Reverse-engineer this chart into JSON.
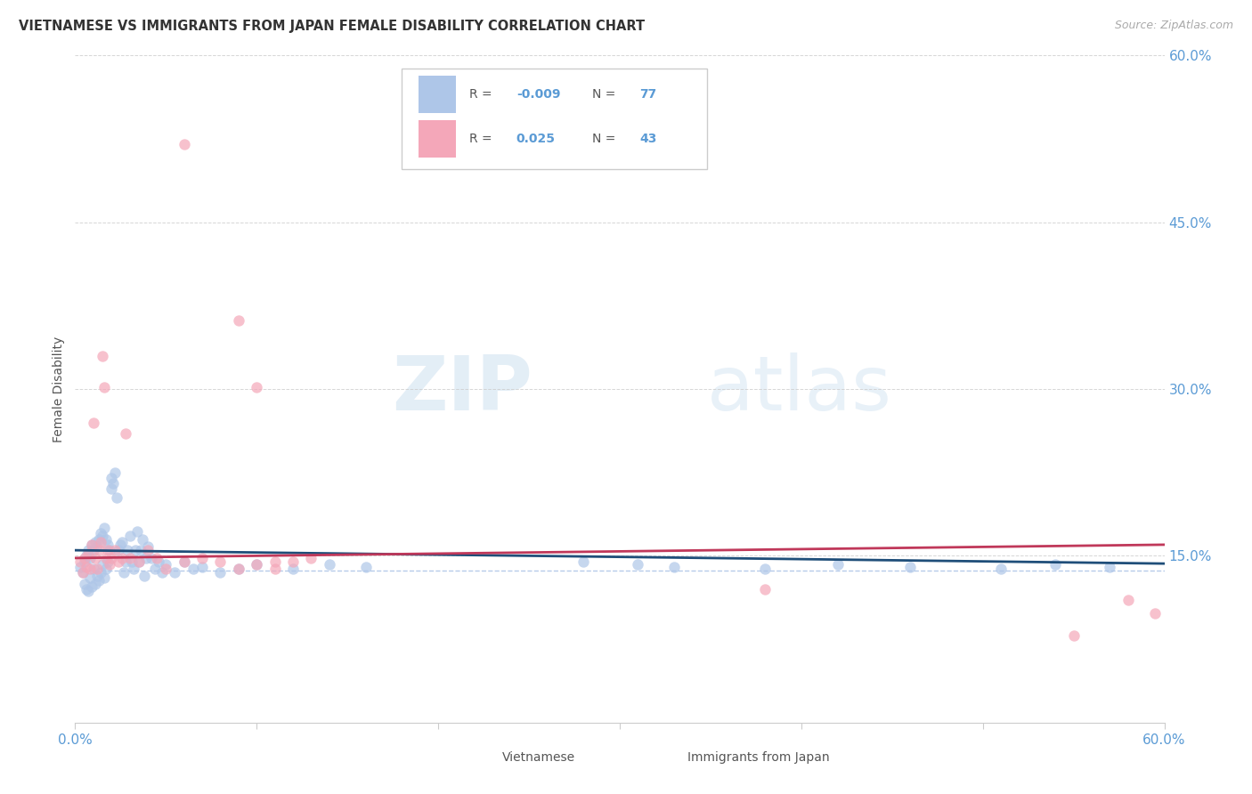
{
  "title": "VIETNAMESE VS IMMIGRANTS FROM JAPAN FEMALE DISABILITY CORRELATION CHART",
  "source": "Source: ZipAtlas.com",
  "ylabel": "Female Disability",
  "xlim": [
    0.0,
    0.6
  ],
  "ylim": [
    0.0,
    0.6
  ],
  "grid_color": "#cccccc",
  "watermark_zip": "ZIP",
  "watermark_atlas": "atlas",
  "scatter_blue_color": "#aec6e8",
  "scatter_pink_color": "#f4a7b9",
  "scatter_alpha": 0.7,
  "scatter_size": 80,
  "trendline_blue_color": "#1f4e79",
  "trendline_pink_color": "#c0385a",
  "dashed_line_color": "#aec6e8",
  "dashed_line_y": 0.137,
  "axis_color": "#5b9bd5",
  "text_color": "#555555",
  "blue_x": [
    0.003,
    0.004,
    0.005,
    0.005,
    0.006,
    0.006,
    0.007,
    0.007,
    0.008,
    0.008,
    0.009,
    0.009,
    0.01,
    0.01,
    0.011,
    0.011,
    0.012,
    0.012,
    0.013,
    0.013,
    0.014,
    0.014,
    0.015,
    0.015,
    0.016,
    0.016,
    0.017,
    0.017,
    0.018,
    0.018,
    0.019,
    0.02,
    0.02,
    0.021,
    0.022,
    0.023,
    0.024,
    0.025,
    0.026,
    0.027,
    0.028,
    0.029,
    0.03,
    0.031,
    0.032,
    0.033,
    0.034,
    0.035,
    0.036,
    0.037,
    0.038,
    0.039,
    0.04,
    0.042,
    0.044,
    0.046,
    0.048,
    0.05,
    0.055,
    0.06,
    0.065,
    0.07,
    0.08,
    0.09,
    0.1,
    0.12,
    0.14,
    0.16,
    0.28,
    0.31,
    0.33,
    0.38,
    0.42,
    0.46,
    0.51,
    0.54,
    0.57
  ],
  "blue_y": [
    0.14,
    0.135,
    0.145,
    0.125,
    0.15,
    0.12,
    0.155,
    0.118,
    0.148,
    0.13,
    0.16,
    0.122,
    0.155,
    0.138,
    0.162,
    0.125,
    0.158,
    0.132,
    0.165,
    0.128,
    0.17,
    0.135,
    0.168,
    0.142,
    0.175,
    0.13,
    0.165,
    0.138,
    0.16,
    0.145,
    0.155,
    0.22,
    0.21,
    0.215,
    0.225,
    0.202,
    0.155,
    0.16,
    0.162,
    0.135,
    0.145,
    0.155,
    0.168,
    0.145,
    0.138,
    0.155,
    0.172,
    0.145,
    0.155,
    0.165,
    0.132,
    0.148,
    0.158,
    0.148,
    0.138,
    0.145,
    0.135,
    0.142,
    0.135,
    0.145,
    0.138,
    0.14,
    0.135,
    0.138,
    0.142,
    0.138,
    0.142,
    0.14,
    0.145,
    0.142,
    0.14,
    0.138,
    0.142,
    0.14,
    0.138,
    0.142,
    0.14
  ],
  "pink_x": [
    0.003,
    0.004,
    0.005,
    0.006,
    0.007,
    0.008,
    0.009,
    0.01,
    0.011,
    0.012,
    0.013,
    0.014,
    0.015,
    0.016,
    0.017,
    0.018,
    0.019,
    0.02,
    0.022,
    0.024,
    0.026,
    0.028,
    0.03,
    0.035,
    0.04,
    0.045,
    0.05,
    0.06,
    0.07,
    0.08,
    0.09,
    0.1,
    0.11,
    0.12,
    0.13,
    0.06,
    0.09,
    0.1,
    0.11,
    0.38,
    0.55,
    0.58,
    0.595
  ],
  "pink_y": [
    0.145,
    0.135,
    0.148,
    0.14,
    0.152,
    0.138,
    0.16,
    0.27,
    0.148,
    0.138,
    0.155,
    0.162,
    0.33,
    0.302,
    0.148,
    0.155,
    0.142,
    0.148,
    0.155,
    0.145,
    0.148,
    0.26,
    0.148,
    0.145,
    0.155,
    0.148,
    0.138,
    0.145,
    0.148,
    0.145,
    0.138,
    0.142,
    0.138,
    0.145,
    0.148,
    0.52,
    0.362,
    0.302,
    0.145,
    0.12,
    0.078,
    0.11,
    0.098
  ],
  "trend_blue_x0": 0.0,
  "trend_blue_x1": 0.6,
  "trend_blue_y0": 0.155,
  "trend_blue_y1": 0.143,
  "trend_pink_x0": 0.0,
  "trend_pink_x1": 0.6,
  "trend_pink_y0": 0.148,
  "trend_pink_y1": 0.16
}
